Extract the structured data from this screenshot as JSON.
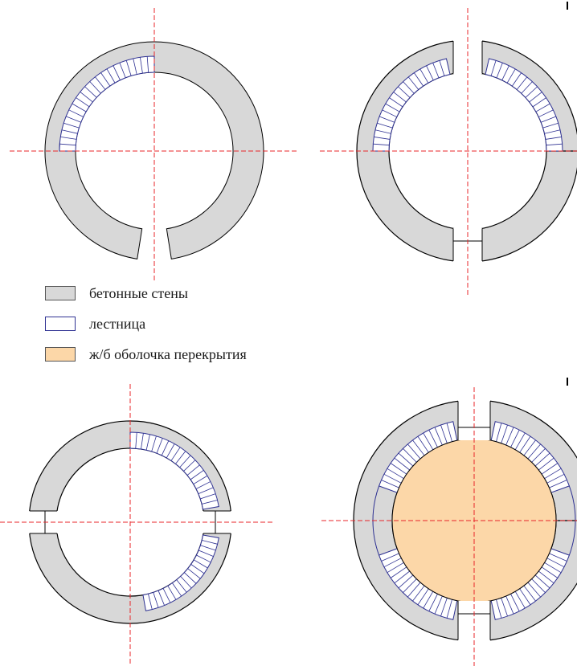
{
  "colors": {
    "concrete": "#d8d8d8",
    "stair": "#2e3192",
    "slab": "#fcd7a8",
    "axis": "#e8262a",
    "outline": "#000000"
  },
  "legend": [
    {
      "label": "бетонные стены",
      "swatch": "concrete"
    },
    {
      "label": "лестница",
      "swatch": "stair"
    },
    {
      "label": "ж/б оболочка перекрытия",
      "swatch": "slab"
    }
  ]
}
